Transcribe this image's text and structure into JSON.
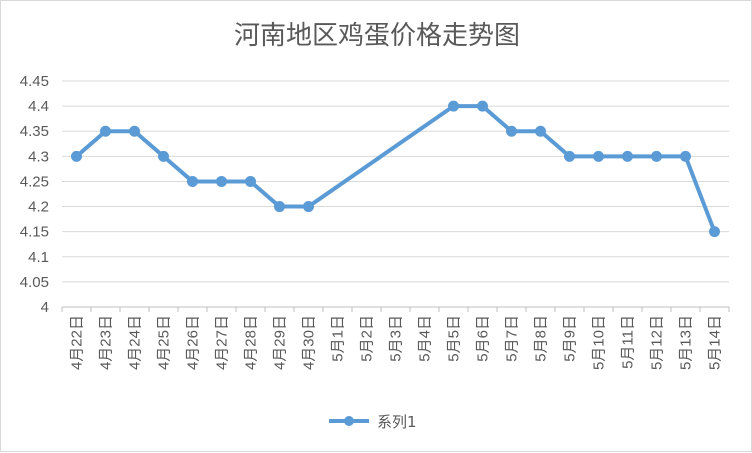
{
  "chart_data": {
    "type": "line",
    "title": "河南地区鸡蛋价格走势图",
    "categories": [
      "4月22日",
      "4月23日",
      "4月24日",
      "4月25日",
      "4月26日",
      "4月27日",
      "4月28日",
      "4月29日",
      "4月30日",
      "5月1日",
      "5月2日",
      "5月3日",
      "5月4日",
      "5月5日",
      "5月6日",
      "5月7日",
      "5月8日",
      "5月9日",
      "5月10日",
      "5月11日",
      "5月12日",
      "5月13日",
      "5月14日"
    ],
    "series": [
      {
        "name": "系列1",
        "color": "#5b9bd5",
        "values": [
          4.3,
          4.35,
          4.35,
          4.3,
          4.25,
          4.25,
          4.25,
          4.2,
          4.2,
          null,
          null,
          null,
          null,
          4.4,
          4.4,
          4.35,
          4.35,
          4.3,
          4.3,
          4.3,
          4.3,
          4.3,
          4.15
        ]
      }
    ],
    "ylim": [
      4,
      4.45
    ],
    "yticks": [
      "4",
      "4.05",
      "4.1",
      "4.15",
      "4.2",
      "4.25",
      "4.3",
      "4.35",
      "4.4",
      "4.45"
    ],
    "grid": true,
    "legend": "bottom"
  }
}
